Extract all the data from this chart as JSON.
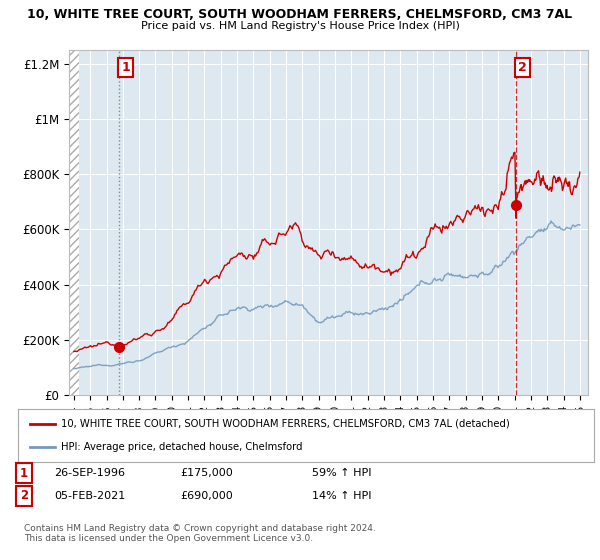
{
  "title": "10, WHITE TREE COURT, SOUTH WOODHAM FERRERS, CHELMSFORD, CM3 7AL",
  "subtitle": "Price paid vs. HM Land Registry's House Price Index (HPI)",
  "legend_label_red": "10, WHITE TREE COURT, SOUTH WOODHAM FERRERS, CHELMSFORD, CM3 7AL (detached)",
  "legend_label_blue": "HPI: Average price, detached house, Chelmsford",
  "annotation1_date": "26-SEP-1996",
  "annotation1_price": "£175,000",
  "annotation1_hpi": "59% ↑ HPI",
  "annotation2_date": "05-FEB-2021",
  "annotation2_price": "£690,000",
  "annotation2_hpi": "14% ↑ HPI",
  "footnote": "Contains HM Land Registry data © Crown copyright and database right 2024.\nThis data is licensed under the Open Government Licence v3.0.",
  "ylim": [
    0,
    1250000
  ],
  "xlim_start": 1993.7,
  "xlim_end": 2025.5,
  "sale1_x": 1996.74,
  "sale1_y": 175000,
  "sale2_x": 2021.09,
  "sale2_y": 690000,
  "red_color": "#cc0000",
  "blue_color": "#7799bb",
  "plot_bg_color": "#dde8f0",
  "background_color": "#ffffff",
  "grid_color": "#ffffff",
  "annotation_border_color": "#cc0000"
}
